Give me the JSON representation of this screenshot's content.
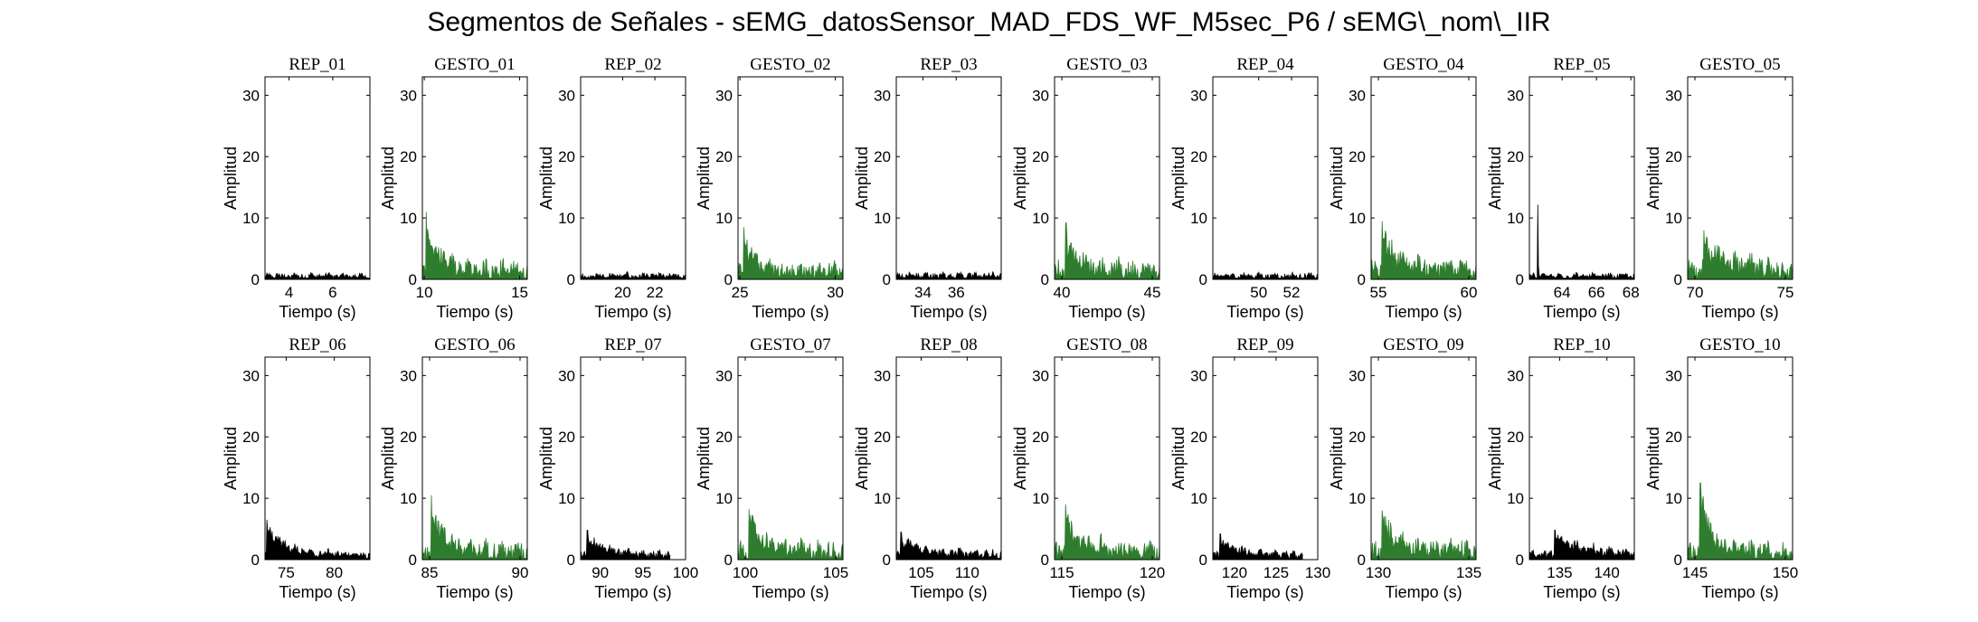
{
  "suptitle": "Segmentos de Señales - sEMG_datosSensor_MAD_FDS_WF_M5sec_P6 / sEMG\\_nom\\_IIR",
  "colors": {
    "rep": "#000000",
    "gesto": "#2e7d2e",
    "axis": "#000000"
  },
  "chart_data": [
    {
      "type": "area",
      "title": "REP_01",
      "kind": "rep",
      "xlabel": "Tiempo (s)",
      "ylabel": "Amplitud",
      "xlim": [
        2.9,
        7.7
      ],
      "ylim": [
        0,
        33
      ],
      "xticks": [
        4,
        6
      ],
      "yticks": [
        0,
        10,
        20,
        30
      ],
      "signal": {
        "start": 2.9,
        "end": 7.7,
        "base": 0.8,
        "spread": 0.45,
        "spike": 0,
        "spike_at": 0,
        "decay": 0
      }
    },
    {
      "type": "area",
      "title": "GESTO_01",
      "kind": "gesto",
      "xlabel": "Tiempo (s)",
      "ylabel": "Amplitud",
      "xlim": [
        9.9,
        15.4
      ],
      "ylim": [
        0,
        33
      ],
      "xticks": [
        10,
        15
      ],
      "yticks": [
        0,
        10,
        20,
        30
      ],
      "signal": {
        "start": 9.9,
        "end": 15.4,
        "base": 2.2,
        "spread": 1.6,
        "spike": 11,
        "spike_at": 10.1,
        "decay": 0.6
      }
    },
    {
      "type": "area",
      "title": "REP_02",
      "kind": "rep",
      "xlabel": "Tiempo (s)",
      "ylabel": "Amplitud",
      "xlim": [
        17.4,
        23.9
      ],
      "ylim": [
        0,
        33
      ],
      "xticks": [
        20,
        22
      ],
      "yticks": [
        0,
        10,
        20,
        30
      ],
      "signal": {
        "start": 17.4,
        "end": 23.9,
        "base": 0.8,
        "spread": 0.45,
        "spike": 0,
        "spike_at": 0,
        "decay": 0
      }
    },
    {
      "type": "area",
      "title": "GESTO_02",
      "kind": "gesto",
      "xlabel": "Tiempo (s)",
      "ylabel": "Amplitud",
      "xlim": [
        24.9,
        30.4
      ],
      "ylim": [
        0,
        33
      ],
      "xticks": [
        25,
        30
      ],
      "yticks": [
        0,
        10,
        20,
        30
      ],
      "signal": {
        "start": 24.9,
        "end": 30.4,
        "base": 2.0,
        "spread": 1.5,
        "spike": 8.5,
        "spike_at": 25.2,
        "decay": 0.6
      }
    },
    {
      "type": "area",
      "title": "REP_03",
      "kind": "rep",
      "xlabel": "Tiempo (s)",
      "ylabel": "Amplitud",
      "xlim": [
        32.4,
        38.7
      ],
      "ylim": [
        0,
        33
      ],
      "xticks": [
        34,
        36
      ],
      "yticks": [
        0,
        10,
        20,
        30
      ],
      "signal": {
        "start": 32.4,
        "end": 38.7,
        "base": 0.9,
        "spread": 0.5,
        "spike": 0,
        "spike_at": 0,
        "decay": 0
      }
    },
    {
      "type": "area",
      "title": "GESTO_03",
      "kind": "gesto",
      "xlabel": "Tiempo (s)",
      "ylabel": "Amplitud",
      "xlim": [
        39.6,
        45.4
      ],
      "ylim": [
        0,
        33
      ],
      "xticks": [
        40,
        45
      ],
      "yticks": [
        0,
        10,
        20,
        30
      ],
      "signal": {
        "start": 39.6,
        "end": 45.4,
        "base": 2.2,
        "spread": 1.6,
        "spike": 9,
        "spike_at": 40.2,
        "decay": 0.7
      }
    },
    {
      "type": "area",
      "title": "REP_04",
      "kind": "rep",
      "xlabel": "Tiempo (s)",
      "ylabel": "Amplitud",
      "xlim": [
        47.2,
        53.6
      ],
      "ylim": [
        0,
        33
      ],
      "xticks": [
        50,
        52
      ],
      "yticks": [
        0,
        10,
        20,
        30
      ],
      "signal": {
        "start": 47.2,
        "end": 53.6,
        "base": 0.8,
        "spread": 0.5,
        "spike": 0,
        "spike_at": 0,
        "decay": 0
      }
    },
    {
      "type": "area",
      "title": "GESTO_04",
      "kind": "gesto",
      "xlabel": "Tiempo (s)",
      "ylabel": "Amplitud",
      "xlim": [
        54.6,
        60.4
      ],
      "ylim": [
        0,
        33
      ],
      "xticks": [
        55,
        60
      ],
      "yticks": [
        0,
        10,
        20,
        30
      ],
      "signal": {
        "start": 54.6,
        "end": 60.4,
        "base": 2.4,
        "spread": 1.7,
        "spike": 9.5,
        "spike_at": 55.2,
        "decay": 0.8
      }
    },
    {
      "type": "area",
      "title": "REP_05",
      "kind": "rep",
      "xlabel": "Tiempo (s)",
      "ylabel": "Amplitud",
      "xlim": [
        62.1,
        68.2
      ],
      "ylim": [
        0,
        33
      ],
      "xticks": [
        64,
        66,
        68
      ],
      "yticks": [
        0,
        10,
        20,
        30
      ],
      "signal": {
        "start": 62.1,
        "end": 68.2,
        "base": 0.8,
        "spread": 0.4,
        "spike": 12.2,
        "spike_at": 62.6,
        "decay": 0.02
      }
    },
    {
      "type": "area",
      "title": "GESTO_05",
      "kind": "gesto",
      "xlabel": "Tiempo (s)",
      "ylabel": "Amplitud",
      "xlim": [
        69.6,
        75.4
      ],
      "ylim": [
        0,
        33
      ],
      "xticks": [
        70,
        75
      ],
      "yticks": [
        0,
        10,
        20,
        30
      ],
      "signal": {
        "start": 69.6,
        "end": 75.4,
        "base": 2.4,
        "spread": 1.8,
        "spike": 8,
        "spike_at": 70.5,
        "decay": 1.0
      }
    },
    {
      "type": "area",
      "title": "REP_06",
      "kind": "rep",
      "xlabel": "Tiempo (s)",
      "ylabel": "Amplitud",
      "xlim": [
        72.8,
        83.7
      ],
      "ylim": [
        0,
        33
      ],
      "xticks": [
        75,
        80
      ],
      "yticks": [
        0,
        10,
        20,
        30
      ],
      "signal": {
        "start": 72.8,
        "end": 83.7,
        "base": 1.1,
        "spread": 0.6,
        "spike": 6.5,
        "spike_at": 73.0,
        "decay": 1.8
      }
    },
    {
      "type": "area",
      "title": "GESTO_06",
      "kind": "gesto",
      "xlabel": "Tiempo (s)",
      "ylabel": "Amplitud",
      "xlim": [
        84.6,
        90.4
      ],
      "ylim": [
        0,
        33
      ],
      "xticks": [
        85,
        90
      ],
      "yticks": [
        0,
        10,
        20,
        30
      ],
      "signal": {
        "start": 84.6,
        "end": 90.4,
        "base": 2.0,
        "spread": 1.6,
        "spike": 10.5,
        "spike_at": 85.1,
        "decay": 0.7
      }
    },
    {
      "type": "area",
      "title": "REP_07",
      "kind": "rep",
      "xlabel": "Tiempo (s)",
      "ylabel": "Amplitud",
      "xlim": [
        87.7,
        100.0
      ],
      "ylim": [
        0,
        33
      ],
      "xticks": [
        90,
        95,
        100
      ],
      "yticks": [
        0,
        10,
        20,
        30
      ],
      "signal": {
        "start": 87.7,
        "end": 98.2,
        "base": 1.2,
        "spread": 0.6,
        "spike": 4.8,
        "spike_at": 88.5,
        "decay": 2.0
      }
    },
    {
      "type": "area",
      "title": "GESTO_07",
      "kind": "gesto",
      "xlabel": "Tiempo (s)",
      "ylabel": "Amplitud",
      "xlim": [
        99.6,
        105.4
      ],
      "ylim": [
        0,
        33
      ],
      "xticks": [
        100,
        105
      ],
      "yticks": [
        0,
        10,
        20,
        30
      ],
      "signal": {
        "start": 99.6,
        "end": 105.4,
        "base": 2.0,
        "spread": 1.6,
        "spike": 8.2,
        "spike_at": 100.2,
        "decay": 0.8
      }
    },
    {
      "type": "area",
      "title": "REP_08",
      "kind": "rep",
      "xlabel": "Tiempo (s)",
      "ylabel": "Amplitud",
      "xlim": [
        102.3,
        113.7
      ],
      "ylim": [
        0,
        33
      ],
      "xticks": [
        105,
        110
      ],
      "yticks": [
        0,
        10,
        20,
        30
      ],
      "signal": {
        "start": 102.3,
        "end": 113.7,
        "base": 1.3,
        "spread": 0.6,
        "spike": 4.5,
        "spike_at": 102.8,
        "decay": 2.5
      }
    },
    {
      "type": "area",
      "title": "GESTO_08",
      "kind": "gesto",
      "xlabel": "Tiempo (s)",
      "ylabel": "Amplitud",
      "xlim": [
        114.6,
        120.4
      ],
      "ylim": [
        0,
        33
      ],
      "xticks": [
        115,
        120
      ],
      "yticks": [
        0,
        10,
        20,
        30
      ],
      "signal": {
        "start": 114.6,
        "end": 120.4,
        "base": 2.2,
        "spread": 1.7,
        "spike": 9,
        "spike_at": 115.2,
        "decay": 0.8
      }
    },
    {
      "type": "area",
      "title": "REP_09",
      "kind": "rep",
      "xlabel": "Tiempo (s)",
      "ylabel": "Amplitud",
      "xlim": [
        117.4,
        130.0
      ],
      "ylim": [
        0,
        33
      ],
      "xticks": [
        120,
        125,
        130
      ],
      "yticks": [
        0,
        10,
        20,
        30
      ],
      "signal": {
        "start": 117.4,
        "end": 128.2,
        "base": 1.2,
        "spread": 0.6,
        "spike": 4.2,
        "spike_at": 118.3,
        "decay": 2.0
      }
    },
    {
      "type": "area",
      "title": "GESTO_09",
      "kind": "gesto",
      "xlabel": "Tiempo (s)",
      "ylabel": "Amplitud",
      "xlim": [
        129.6,
        135.4
      ],
      "ylim": [
        0,
        33
      ],
      "xticks": [
        130,
        135
      ],
      "yticks": [
        0,
        10,
        20,
        30
      ],
      "signal": {
        "start": 129.6,
        "end": 135.4,
        "base": 2.2,
        "spread": 1.7,
        "spike": 8,
        "spike_at": 130.2,
        "decay": 0.9
      }
    },
    {
      "type": "area",
      "title": "REP_10",
      "kind": "rep",
      "xlabel": "Tiempo (s)",
      "ylabel": "Amplitud",
      "xlim": [
        131.8,
        142.9
      ],
      "ylim": [
        0,
        33
      ],
      "xticks": [
        135,
        140
      ],
      "yticks": [
        0,
        10,
        20,
        30
      ],
      "signal": {
        "start": 131.8,
        "end": 142.9,
        "base": 1.4,
        "spread": 0.7,
        "spike": 4.8,
        "spike_at": 134.5,
        "decay": 3.0
      }
    },
    {
      "type": "area",
      "title": "GESTO_10",
      "kind": "gesto",
      "xlabel": "Tiempo (s)",
      "ylabel": "Amplitud",
      "xlim": [
        144.6,
        150.4
      ],
      "ylim": [
        0,
        33
      ],
      "xticks": [
        145,
        150
      ],
      "yticks": [
        0,
        10,
        20,
        30
      ],
      "signal": {
        "start": 144.6,
        "end": 150.4,
        "base": 1.9,
        "spread": 1.5,
        "spike": 12.5,
        "spike_at": 145.3,
        "decay": 0.6
      }
    }
  ]
}
